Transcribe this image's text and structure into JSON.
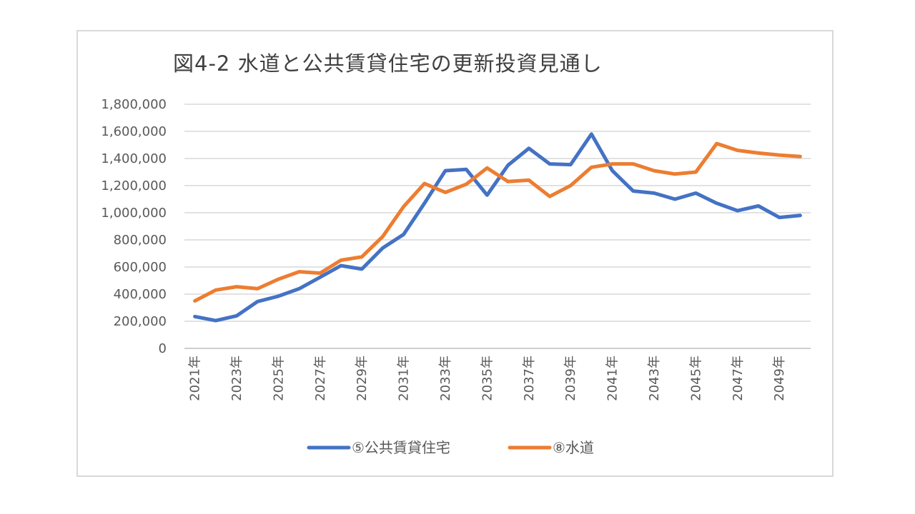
{
  "chart_data": {
    "type": "line",
    "title": "図4-2 水道と公共賃貸住宅の更新投資見通し",
    "xlabel": "",
    "ylabel": "",
    "ylim": [
      0,
      1800000
    ],
    "yticks": [
      "0",
      "200,000",
      "400,000",
      "600,000",
      "800,000",
      "1,000,000",
      "1,200,000",
      "1,400,000",
      "1,600,000",
      "1,800,000"
    ],
    "x": [
      "2021年",
      "2022年",
      "2023年",
      "2024年",
      "2025年",
      "2026年",
      "2027年",
      "2028年",
      "2029年",
      "2030年",
      "2031年",
      "2032年",
      "2033年",
      "2034年",
      "2035年",
      "2036年",
      "2037年",
      "2038年",
      "2039年",
      "2040年",
      "2041年",
      "2042年",
      "2043年",
      "2044年",
      "2045年",
      "2046年",
      "2047年",
      "2048年",
      "2049年",
      "2050年"
    ],
    "x_tick_labels_shown": [
      "2021年",
      "2023年",
      "2025年",
      "2027年",
      "2029年",
      "2031年",
      "2033年",
      "2035年",
      "2037年",
      "2039年",
      "2041年",
      "2043年",
      "2045年",
      "2047年",
      "2049年"
    ],
    "grid": true,
    "legend_position": "bottom",
    "series": [
      {
        "name": "⑤公共賃貸住宅",
        "color": "#4472c4",
        "values": [
          235000,
          205000,
          240000,
          345000,
          385000,
          440000,
          525000,
          610000,
          585000,
          740000,
          840000,
          1070000,
          1310000,
          1320000,
          1130000,
          1350000,
          1475000,
          1360000,
          1355000,
          1580000,
          1310000,
          1160000,
          1145000,
          1100000,
          1145000,
          1070000,
          1015000,
          1050000,
          965000,
          980000
        ]
      },
      {
        "name": "⑧水道",
        "color": "#ed7d31",
        "values": [
          350000,
          430000,
          455000,
          440000,
          510000,
          565000,
          555000,
          650000,
          675000,
          825000,
          1045000,
          1215000,
          1150000,
          1210000,
          1330000,
          1230000,
          1240000,
          1120000,
          1200000,
          1335000,
          1360000,
          1360000,
          1310000,
          1285000,
          1300000,
          1510000,
          1460000,
          1440000,
          1425000,
          1415000
        ]
      }
    ]
  }
}
